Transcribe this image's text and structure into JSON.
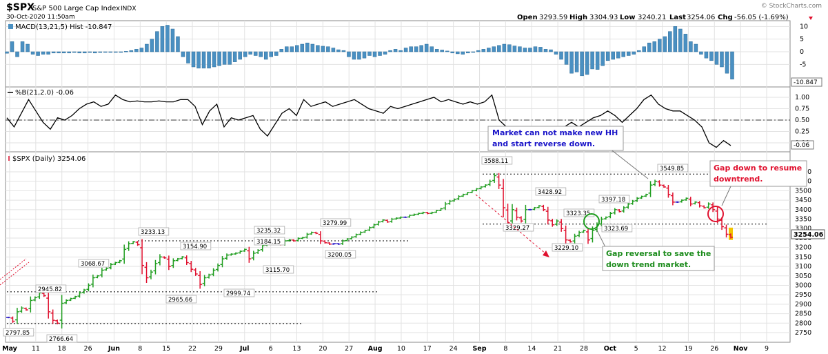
{
  "header": {
    "symbol": "$SPX",
    "name": "S&P 500 Large Cap Index",
    "exchange": "INDX",
    "date": "30-Oct-2020 11:50am",
    "brand": "© StockCharts.com",
    "open_label": "Open",
    "open": "3293.59",
    "high_label": "High",
    "high": "3304.93",
    "low_label": "Low",
    "low": "3240.21",
    "last_label": "Last",
    "last": "3254.06",
    "chg_label": "Chg",
    "chg": "-56.05 (-1.69%)"
  },
  "panels": {
    "macd_label": "MACD(13,21,5) Hist -10.847",
    "macd_last": "-10.847",
    "pctb_label": "%B(21,2.0) -0.06",
    "pctb_last": "-0.06",
    "price_label": "$SPX (Daily) 3254.06",
    "price_last": "3254.06"
  },
  "annotations": {
    "note1": [
      "Market can not make new HH",
      "and start reverse down."
    ],
    "note2": [
      "Gap reversal to save the",
      "down trend market."
    ],
    "note3": [
      "Gap down to resume",
      "downtrend."
    ]
  },
  "chart_data": [
    {
      "type": "bar",
      "title": "MACD(13,21,5) Hist -10.847",
      "ylim": [
        -12,
        12
      ],
      "y_ticks": [
        "10",
        "5",
        "0",
        "-5"
      ],
      "last_value": -10.847,
      "bar_color": "#4a90c2",
      "hist_values": [
        -0.6,
        4,
        -2,
        4,
        3,
        -1,
        -1.5,
        -1,
        -1,
        -0.5,
        -0.5,
        -0.5,
        -0.5,
        -0.3,
        -0.5,
        -0.5,
        -0.3,
        -0.5,
        -0.3,
        -0.2,
        -0.2,
        -0.1,
        -0.1,
        0.2,
        0.5,
        1,
        1.5,
        3,
        5,
        8,
        10,
        10.5,
        9,
        6,
        -2,
        -4.5,
        -6,
        -6.5,
        -6.5,
        -6.5,
        -6,
        -5.5,
        -5,
        -5,
        -4,
        -3,
        -2,
        -1,
        -1.5,
        -2,
        -3,
        -2,
        -1.5,
        1,
        2,
        2,
        2.5,
        3,
        3.5,
        3,
        2.5,
        2.2,
        2,
        1.5,
        0.8,
        0.5,
        -2,
        -3,
        -3,
        -2.5,
        -1.5,
        -2,
        -1.5,
        -1,
        0.5,
        1,
        0.5,
        1.5,
        2,
        2,
        2.5,
        3,
        2,
        1,
        0.7,
        0.3,
        -0.5,
        -0.8,
        -1,
        -0.5,
        0,
        0.5,
        1,
        1.5,
        2,
        2.5,
        3,
        2.8,
        2.3,
        2,
        1.5,
        1.5,
        2,
        1.8,
        1,
        0.8,
        -1,
        -3,
        -5,
        -8.5,
        -8,
        -9.5,
        -9,
        -6.8,
        -7,
        -5.5,
        -3.5,
        -3,
        -2.5,
        -2,
        -1.5,
        -1,
        0.5,
        2,
        3.5,
        4,
        5,
        6,
        8,
        10,
        9,
        7,
        4,
        3,
        -1,
        -2.5,
        -3.5,
        -5,
        -6,
        -8.5,
        -10.847
      ]
    },
    {
      "type": "line",
      "title": "%B(21,2.0) -0.06",
      "ylim": [
        -0.25,
        1.25
      ],
      "y_ticks": [
        "1.00",
        "0.75",
        "0.50",
        "0.25",
        "0.00"
      ],
      "reference_line": 0.5,
      "last_value": -0.06,
      "values": [
        0.55,
        0.35,
        0.65,
        0.95,
        0.7,
        0.45,
        0.3,
        0.55,
        0.5,
        0.6,
        0.75,
        0.85,
        0.9,
        0.8,
        0.85,
        1.05,
        0.95,
        0.9,
        0.92,
        0.9,
        0.9,
        0.92,
        0.9,
        0.9,
        0.95,
        0.95,
        0.8,
        0.4,
        0.7,
        0.85,
        0.35,
        0.55,
        0.5,
        0.55,
        0.6,
        0.3,
        0.15,
        0.4,
        0.65,
        0.75,
        0.6,
        0.95,
        0.8,
        0.85,
        0.9,
        0.8,
        0.85,
        0.9,
        0.95,
        0.85,
        0.75,
        0.7,
        0.65,
        0.8,
        0.75,
        0.8,
        0.85,
        0.9,
        0.95,
        1.0,
        0.9,
        0.95,
        0.9,
        0.85,
        0.9,
        0.85,
        0.9,
        1.05,
        0.5,
        0.35,
        0.15,
        0.2,
        0.35,
        0.25,
        0.2,
        0.3,
        0.25,
        0.35,
        0.45,
        0.35,
        0.45,
        0.55,
        0.6,
        0.7,
        0.6,
        0.45,
        0.6,
        0.75,
        0.95,
        1.05,
        0.85,
        0.75,
        0.7,
        0.7,
        0.6,
        0.5,
        0.35,
        0.0,
        -0.1,
        0.05,
        -0.06
      ]
    },
    {
      "type": "ohlc",
      "title": "$SPX (Daily) 3254.06",
      "ylim": [
        2720,
        3620
      ],
      "y_ticks": [
        "3600",
        "3550",
        "3500",
        "3450",
        "3400",
        "3350",
        "3300",
        "3250",
        "3200",
        "3150",
        "3100",
        "3050",
        "3000",
        "2950",
        "2900",
        "2850",
        "2800",
        "2750"
      ],
      "x_labels": [
        "May",
        "11",
        "18",
        "26",
        "Jun",
        "8",
        "15",
        "22",
        "29",
        "Jul",
        "6",
        "13",
        "20",
        "27",
        "Aug",
        "10",
        "17",
        "24",
        "Sep",
        "8",
        "14",
        "21",
        "28",
        "Oct",
        "5",
        "12",
        "19",
        "26",
        "Nov",
        "9"
      ],
      "colors": {
        "up": "#1f9d1f",
        "down": "#e0102e",
        "neutral": "#2a18c8",
        "last": "#f2c400"
      },
      "closes": [
        2830,
        2810,
        2860,
        2880,
        2870,
        2920,
        2935,
        2960,
        2945,
        2860,
        2815,
        2800,
        2905,
        2920,
        2930,
        2940,
        2960,
        2975,
        3000,
        3040,
        3050,
        3080,
        3090,
        3110,
        3120,
        3130,
        3190,
        3220,
        3230,
        3215,
        3105,
        3040,
        3070,
        3115,
        3150,
        3145,
        3100,
        3130,
        3140,
        3150,
        3120,
        3085,
        3060,
        3005,
        3040,
        3055,
        3080,
        3105,
        3140,
        3160,
        3165,
        3170,
        3180,
        3190,
        3140,
        3170,
        3185,
        3210,
        3225,
        3230,
        3225,
        3215,
        3235,
        3240,
        3235,
        3248,
        3252,
        3270,
        3280,
        3275,
        3235,
        3225,
        3218,
        3220,
        3218,
        3235,
        3245,
        3255,
        3268,
        3280,
        3290,
        3305,
        3320,
        3335,
        3345,
        3335,
        3350,
        3355,
        3360,
        3360,
        3370,
        3375,
        3380,
        3385,
        3380,
        3385,
        3395,
        3405,
        3430,
        3445,
        3455,
        3470,
        3480,
        3490,
        3500,
        3510,
        3520,
        3530,
        3550,
        3580,
        3530,
        3410,
        3330,
        3400,
        3360,
        3340,
        3400,
        3400,
        3410,
        3420,
        3400,
        3345,
        3320,
        3340,
        3300,
        3240,
        3230,
        3260,
        3280,
        3290,
        3240,
        3290,
        3320,
        3350,
        3360,
        3380,
        3400,
        3390,
        3410,
        3430,
        3445,
        3460,
        3470,
        3480,
        3530,
        3550,
        3530,
        3520,
        3480,
        3440,
        3440,
        3450,
        3460,
        3430,
        3440,
        3420,
        3410,
        3430,
        3400,
        3350,
        3310,
        3270,
        3254.06
      ],
      "level_labels": [
        "3588.11",
        "3549.85",
        "3428.92",
        "3397.18",
        "3323.35",
        "3323.69",
        "3329.27",
        "3229.10",
        "3279.99",
        "3235.32",
        "3184.15",
        "3233.13",
        "3154.90",
        "3200.05",
        "3115.70",
        "3068.67",
        "2965.66",
        "2999.74",
        "2945.82",
        "2797.85",
        "2766.64"
      ],
      "reference_levels": [
        3588.11,
        3323.69,
        3235.32,
        2965.66,
        2797.85
      ],
      "last_value": 3254.06
    }
  ]
}
